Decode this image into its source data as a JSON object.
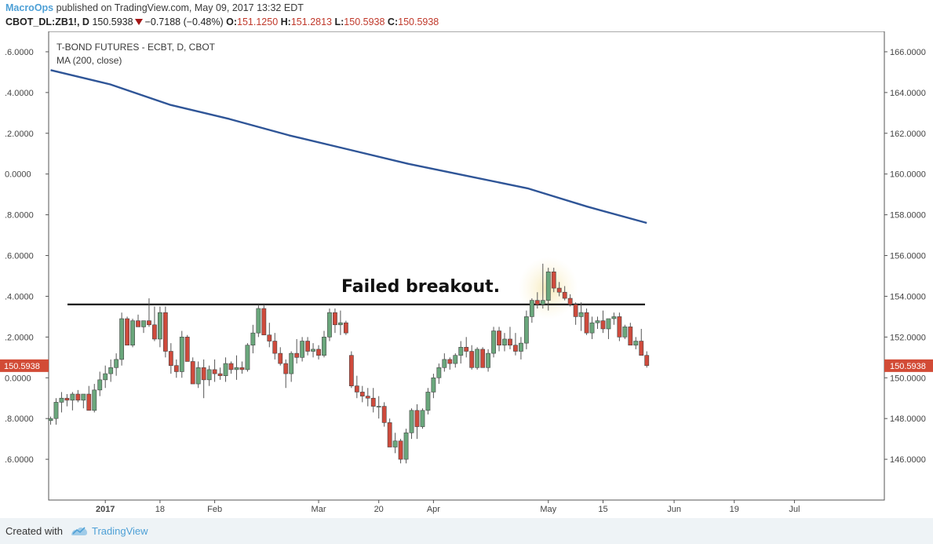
{
  "header": {
    "author": "MacroOps",
    "published_text": " published on TradingView.com, May 09, 2017 13:32 EDT",
    "symbol": "CBOT_DL:ZB1!, D",
    "last": "150.5938",
    "change": "−0.7188 (−0.48%)",
    "o_label": "O:",
    "o_value": "151.1250",
    "h_label": "H:",
    "h_value": "151.2813",
    "l_label": "L:",
    "l_value": "150.5938",
    "c_label": "C:",
    "c_value": "150.5938"
  },
  "footer": {
    "created_with": "Created with",
    "brand": "TradingView"
  },
  "colors": {
    "up": "#6aa77c",
    "down": "#cf4a3c",
    "ma": "#2f5597",
    "price_tag": "#d24b36",
    "brand": "#4ea0d6"
  },
  "chart_data": {
    "type": "candlestick",
    "title": "T-BOND FUTURES - ECBT, D, CBOT",
    "indicator": "MA (200, close)",
    "annotation": "Failed breakout.",
    "resistance_level": 153.6,
    "current_price_label": "150.5938",
    "y_range": [
      144.0,
      167.0
    ],
    "y_ticks_right": [
      "166.0000",
      "164.0000",
      "162.0000",
      "160.0000",
      "158.0000",
      "156.0000",
      "154.0000",
      "152.0000",
      "150.0000",
      "148.0000",
      "146.0000"
    ],
    "y_ticks_left": [
      ".6.0000",
      ".4.0000",
      ".2.0000",
      "0.0000",
      ".8.0000",
      ".6.0000",
      ".4.0000",
      ".2.0000",
      "0.0000",
      ".8.0000",
      ".6.0000"
    ],
    "x_ticks": [
      {
        "label": "2017",
        "bar": 10,
        "bold": true
      },
      {
        "label": "18",
        "bar": 20
      },
      {
        "label": "Feb",
        "bar": 30
      },
      {
        "label": "Mar",
        "bar": 49
      },
      {
        "label": "20",
        "bar": 60
      },
      {
        "label": "Apr",
        "bar": 70
      },
      {
        "label": "May",
        "bar": 91
      },
      {
        "label": "15",
        "bar": 101
      },
      {
        "label": "Jun",
        "bar": 114
      },
      {
        "label": "19",
        "bar": 125
      },
      {
        "label": "Jul",
        "bar": 136
      }
    ],
    "candles": [
      [
        147.9,
        148.1,
        147.7,
        148.0
      ],
      [
        148.0,
        149.0,
        147.7,
        148.8
      ],
      [
        148.8,
        149.3,
        148.3,
        149.0
      ],
      [
        149.0,
        149.2,
        148.6,
        148.9
      ],
      [
        148.9,
        149.3,
        148.4,
        149.2
      ],
      [
        149.2,
        149.4,
        148.8,
        148.9
      ],
      [
        148.9,
        149.1,
        148.5,
        149.2
      ],
      [
        149.2,
        149.6,
        148.6,
        148.4
      ],
      [
        148.4,
        149.7,
        148.3,
        149.4
      ],
      [
        149.4,
        150.3,
        149.1,
        149.9
      ],
      [
        149.9,
        150.6,
        149.5,
        150.2
      ],
      [
        150.2,
        150.9,
        149.8,
        150.5
      ],
      [
        150.5,
        151.2,
        150.1,
        150.9
      ],
      [
        150.9,
        153.2,
        150.6,
        152.9
      ],
      [
        152.9,
        153.0,
        151.7,
        151.6
      ],
      [
        151.6,
        152.9,
        151.5,
        152.8
      ],
      [
        152.8,
        153.1,
        152.5,
        152.5
      ],
      [
        152.5,
        152.8,
        152.2,
        152.8
      ],
      [
        152.8,
        153.9,
        152.5,
        152.6
      ],
      [
        152.6,
        153.5,
        151.8,
        151.9
      ],
      [
        151.9,
        153.5,
        151.5,
        153.2
      ],
      [
        153.2,
        153.5,
        151.0,
        151.3
      ],
      [
        151.3,
        151.7,
        150.2,
        150.6
      ],
      [
        150.6,
        150.9,
        150.0,
        150.3
      ],
      [
        150.3,
        152.3,
        150.0,
        152.0
      ],
      [
        152.0,
        152.1,
        150.8,
        150.8
      ],
      [
        150.8,
        151.0,
        149.7,
        149.7
      ],
      [
        149.7,
        150.8,
        149.5,
        150.5
      ],
      [
        150.5,
        150.9,
        149.0,
        149.9
      ],
      [
        149.9,
        150.6,
        149.6,
        150.4
      ],
      [
        150.4,
        150.9,
        149.8,
        150.2
      ],
      [
        150.2,
        150.5,
        149.9,
        150.1
      ],
      [
        150.1,
        151.0,
        149.8,
        150.7
      ],
      [
        150.7,
        150.8,
        150.2,
        150.4
      ],
      [
        150.4,
        151.1,
        149.9,
        150.5
      ],
      [
        150.5,
        150.8,
        150.2,
        150.4
      ],
      [
        150.4,
        151.7,
        150.3,
        151.6
      ],
      [
        151.6,
        152.6,
        151.2,
        152.2
      ],
      [
        152.2,
        153.6,
        152.0,
        153.4
      ],
      [
        153.4,
        153.6,
        152.1,
        152.1
      ],
      [
        152.1,
        152.7,
        151.5,
        151.8
      ],
      [
        151.8,
        152.2,
        150.9,
        151.2
      ],
      [
        151.2,
        151.5,
        150.6,
        150.7
      ],
      [
        150.7,
        150.9,
        149.5,
        150.2
      ],
      [
        150.2,
        151.3,
        149.8,
        151.2
      ],
      [
        151.2,
        151.9,
        150.7,
        151.0
      ],
      [
        151.0,
        152.0,
        150.8,
        151.8
      ],
      [
        151.8,
        152.0,
        151.1,
        151.3
      ],
      [
        151.3,
        151.7,
        151.0,
        151.4
      ],
      [
        151.4,
        151.6,
        150.9,
        151.1
      ],
      [
        151.1,
        152.3,
        151.0,
        152.0
      ],
      [
        152.0,
        153.4,
        151.8,
        153.2
      ],
      [
        153.2,
        153.4,
        152.2,
        152.6
      ],
      [
        152.6,
        153.3,
        152.1,
        152.7
      ],
      [
        152.7,
        152.8,
        152.1,
        152.2
      ],
      [
        151.1,
        151.3,
        149.5,
        149.6
      ],
      [
        149.6,
        150.1,
        149.0,
        149.3
      ],
      [
        149.3,
        149.6,
        148.8,
        149.1
      ],
      [
        149.1,
        149.5,
        148.6,
        149.0
      ],
      [
        149.0,
        149.5,
        148.3,
        148.6
      ],
      [
        148.6,
        149.1,
        148.0,
        148.6
      ],
      [
        148.6,
        148.8,
        147.6,
        147.8
      ],
      [
        147.8,
        148.0,
        146.8,
        146.6
      ],
      [
        146.6,
        147.3,
        146.3,
        146.9
      ],
      [
        146.9,
        147.0,
        145.8,
        146.0
      ],
      [
        146.0,
        147.5,
        145.8,
        147.3
      ],
      [
        147.3,
        148.5,
        147.0,
        148.4
      ],
      [
        148.4,
        148.7,
        147.0,
        147.6
      ],
      [
        147.6,
        148.5,
        147.5,
        148.4
      ],
      [
        148.4,
        149.5,
        148.2,
        149.3
      ],
      [
        149.3,
        150.2,
        149.0,
        150.0
      ],
      [
        150.0,
        150.7,
        149.7,
        150.5
      ],
      [
        150.5,
        151.2,
        150.3,
        150.9
      ],
      [
        150.9,
        151.0,
        150.4,
        150.7
      ],
      [
        150.7,
        151.2,
        150.5,
        151.1
      ],
      [
        151.1,
        151.8,
        150.7,
        151.5
      ],
      [
        151.5,
        152.0,
        151.0,
        151.3
      ],
      [
        151.3,
        151.6,
        150.4,
        150.5
      ],
      [
        150.5,
        151.5,
        150.4,
        151.4
      ],
      [
        151.4,
        151.5,
        150.6,
        150.5
      ],
      [
        150.5,
        151.4,
        150.3,
        151.2
      ],
      [
        151.2,
        152.5,
        151.0,
        152.3
      ],
      [
        152.3,
        152.5,
        151.3,
        151.6
      ],
      [
        151.6,
        152.2,
        151.3,
        151.9
      ],
      [
        151.9,
        152.5,
        151.4,
        151.6
      ],
      [
        151.6,
        152.2,
        151.1,
        151.3
      ],
      [
        151.3,
        152.0,
        150.9,
        151.7
      ],
      [
        151.7,
        153.3,
        151.4,
        153.0
      ],
      [
        153.0,
        153.9,
        152.7,
        153.8
      ],
      [
        153.8,
        154.2,
        153.4,
        153.6
      ],
      [
        153.6,
        155.6,
        153.4,
        153.8
      ],
      [
        153.8,
        155.4,
        153.3,
        155.2
      ],
      [
        155.2,
        155.4,
        154.2,
        154.4
      ],
      [
        154.4,
        154.7,
        154.0,
        154.2
      ],
      [
        154.2,
        154.5,
        153.8,
        153.9
      ],
      [
        153.9,
        154.1,
        153.5,
        153.6
      ],
      [
        153.6,
        153.7,
        152.6,
        153.0
      ],
      [
        153.0,
        153.7,
        152.3,
        153.2
      ],
      [
        153.2,
        153.4,
        152.1,
        152.2
      ],
      [
        152.2,
        153.0,
        151.9,
        152.7
      ],
      [
        152.7,
        153.0,
        152.4,
        152.8
      ],
      [
        152.8,
        153.3,
        152.2,
        152.4
      ],
      [
        152.4,
        152.7,
        151.9,
        152.9
      ],
      [
        152.9,
        153.2,
        152.6,
        153.0
      ],
      [
        153.0,
        153.2,
        151.8,
        152.0
      ],
      [
        152.0,
        152.6,
        151.9,
        152.5
      ],
      [
        152.5,
        152.7,
        151.7,
        151.6
      ],
      [
        151.6,
        152.0,
        151.4,
        151.8
      ],
      [
        151.8,
        152.4,
        151.2,
        151.1
      ],
      [
        151.1,
        151.3,
        150.5,
        150.6
      ]
    ],
    "ma200": [
      165.1,
      164.4,
      163.4,
      162.7,
      161.9,
      161.2,
      160.5,
      159.9,
      159.3,
      158.4,
      157.6
    ]
  }
}
